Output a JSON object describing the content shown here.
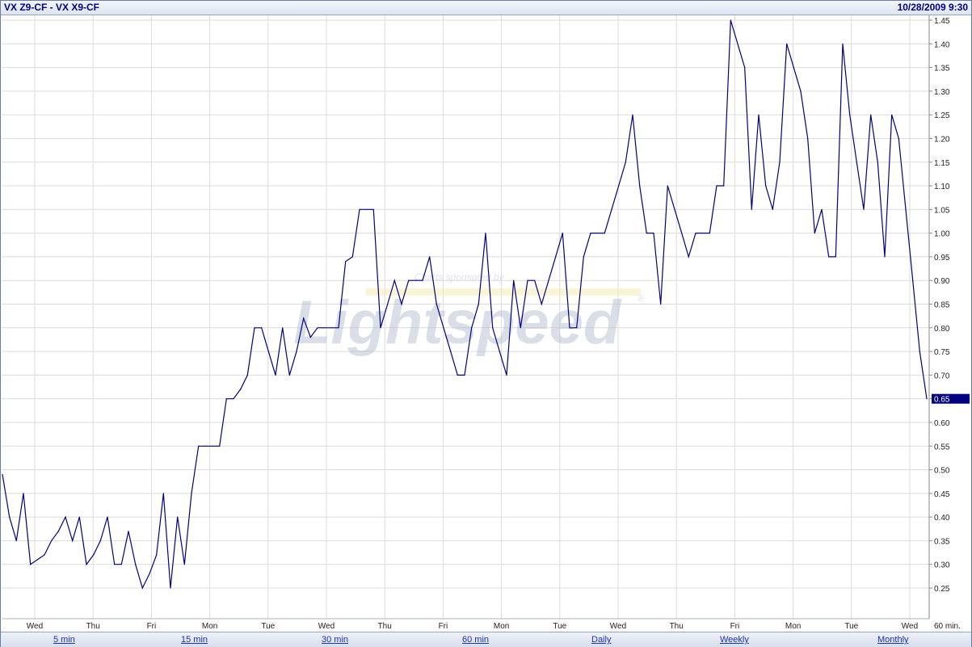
{
  "header": {
    "symbol": "VX Z9-CF - VX X9-CF",
    "datetime": "10/28/2009 9:30"
  },
  "watermark": {
    "tagline": "Charts sponsored by",
    "brand": "Lightspeed",
    "mark": "®"
  },
  "periods": [
    "5 min",
    "15 min",
    "30 min",
    "60 min",
    "Daily",
    "Weekly",
    "Monthly"
  ],
  "chart_data": {
    "type": "line",
    "series_color": "#000080",
    "grid": true,
    "ylim": [
      0.25,
      1.45
    ],
    "yticks": [
      "0.25",
      "0.30",
      "0.35",
      "0.40",
      "0.45",
      "0.50",
      "0.55",
      "0.60",
      "0.65",
      "0.70",
      "0.75",
      "0.80",
      "0.85",
      "0.90",
      "0.95",
      "1.00",
      "1.05",
      "1.10",
      "1.15",
      "1.20",
      "1.25",
      "1.30",
      "1.35",
      "1.40",
      "1.45"
    ],
    "xticks": [
      "Wed",
      "Thu",
      "Fri",
      "Mon",
      "Tue",
      "Wed",
      "Thu",
      "Fri",
      "Mon",
      "Tue",
      "Wed",
      "Thu",
      "Fri",
      "Mon",
      "Tue",
      "Wed"
    ],
    "x_unit_label": "60 min.",
    "last_value": "0.65",
    "values": [
      0.49,
      0.4,
      0.35,
      0.45,
      0.3,
      0.31,
      0.32,
      0.35,
      0.37,
      0.4,
      0.35,
      0.4,
      0.3,
      0.32,
      0.35,
      0.4,
      0.3,
      0.3,
      0.37,
      0.3,
      0.25,
      0.28,
      0.32,
      0.45,
      0.25,
      0.4,
      0.3,
      0.45,
      0.55,
      0.55,
      0.55,
      0.55,
      0.65,
      0.65,
      0.67,
      0.7,
      0.8,
      0.8,
      0.75,
      0.7,
      0.8,
      0.7,
      0.75,
      0.82,
      0.78,
      0.8,
      0.8,
      0.8,
      0.8,
      0.94,
      0.95,
      1.05,
      1.05,
      1.05,
      0.8,
      0.85,
      0.9,
      0.85,
      0.9,
      0.9,
      0.9,
      0.95,
      0.85,
      0.8,
      0.75,
      0.7,
      0.7,
      0.8,
      0.85,
      1.0,
      0.8,
      0.75,
      0.7,
      0.9,
      0.8,
      0.9,
      0.9,
      0.85,
      0.9,
      0.95,
      1.0,
      0.8,
      0.8,
      0.95,
      1.0,
      1.0,
      1.0,
      1.05,
      1.1,
      1.15,
      1.25,
      1.1,
      1.0,
      1.0,
      0.85,
      1.1,
      1.05,
      1.0,
      0.95,
      1.0,
      1.0,
      1.0,
      1.1,
      1.1,
      1.45,
      1.4,
      1.35,
      1.05,
      1.25,
      1.1,
      1.05,
      1.15,
      1.4,
      1.35,
      1.3,
      1.2,
      1.0,
      1.05,
      0.95,
      0.95,
      1.4,
      1.25,
      1.15,
      1.05,
      1.25,
      1.15,
      0.95,
      1.25,
      1.2,
      1.05,
      0.9,
      0.75,
      0.65
    ]
  }
}
